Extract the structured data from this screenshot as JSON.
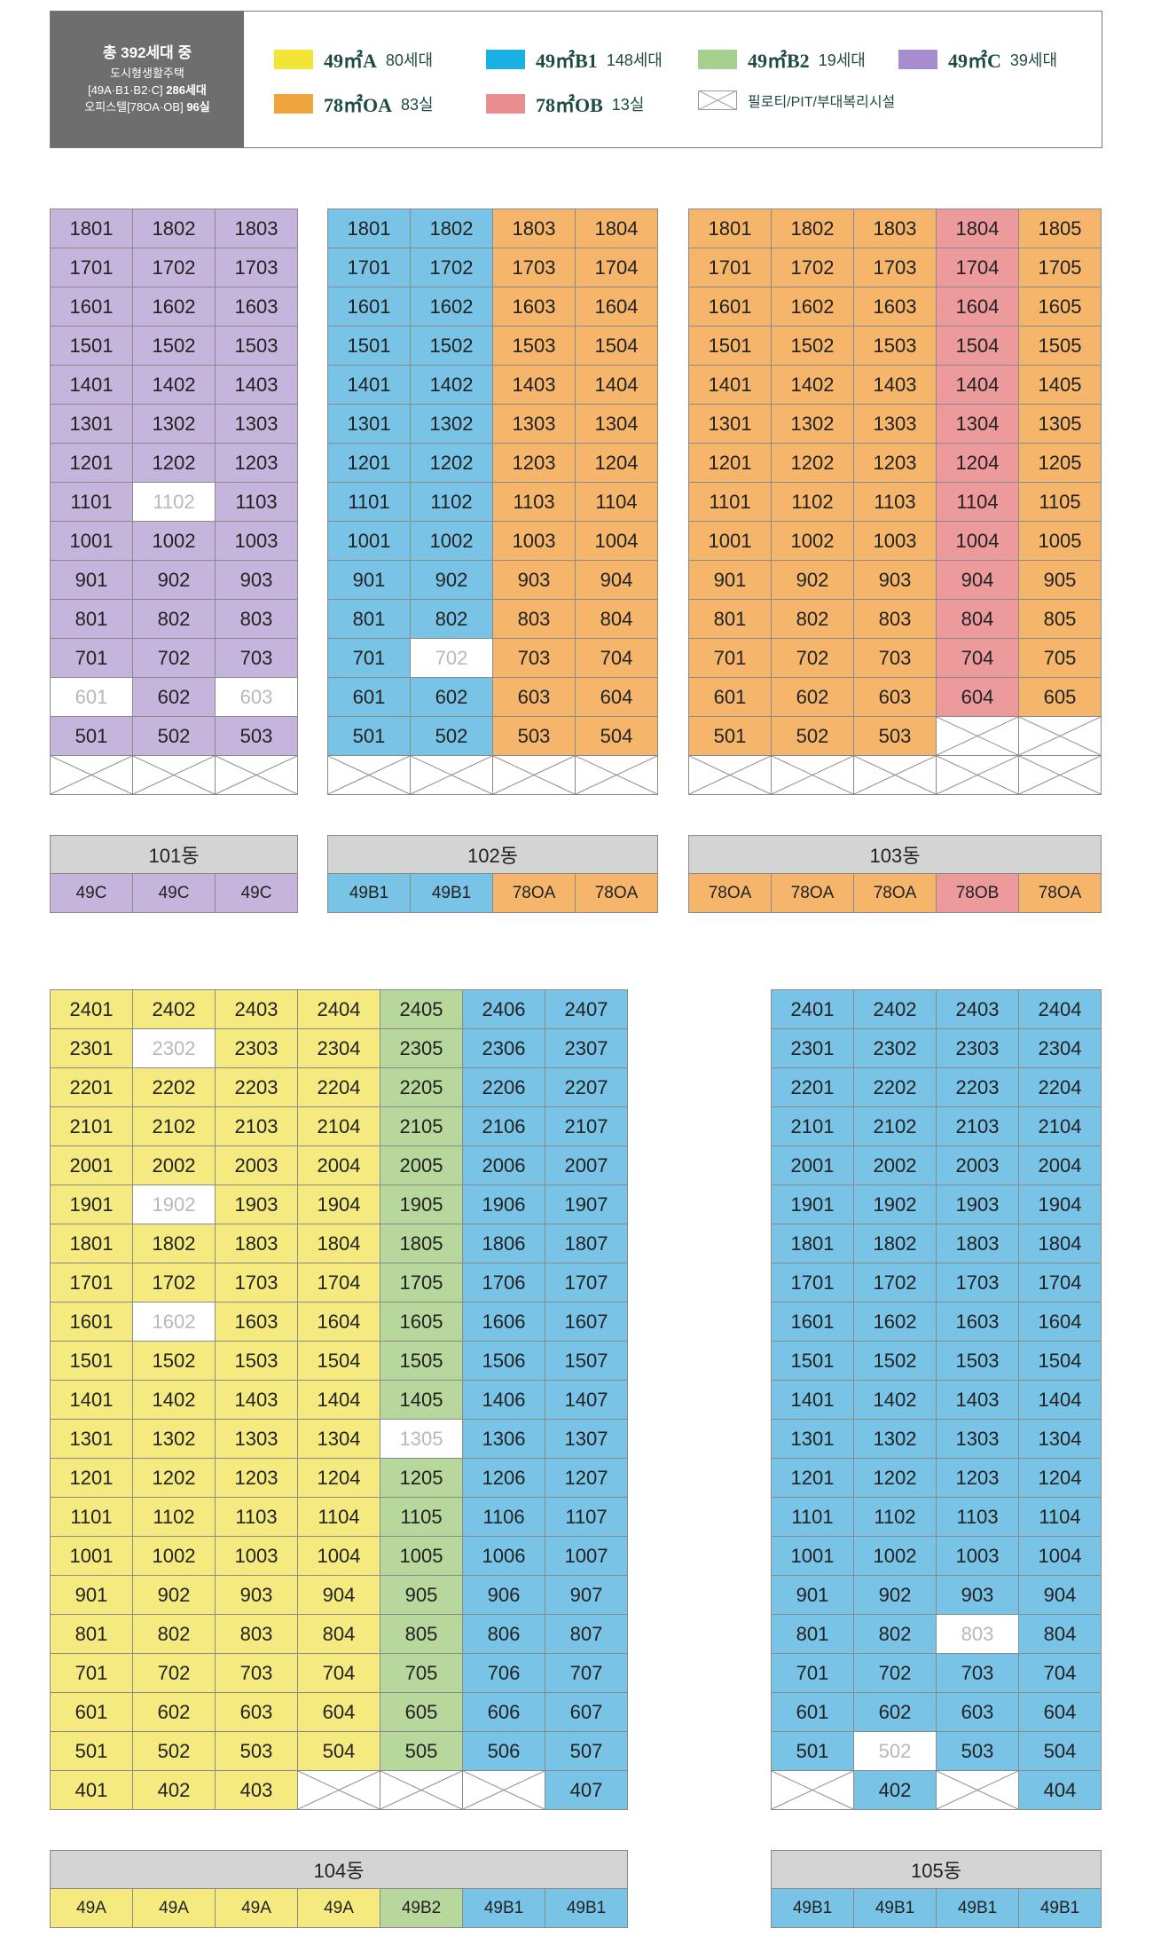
{
  "legend": {
    "summary": {
      "line1": "총 392세대 중",
      "line2": "도시형생활주택",
      "line3_a": "[49A·B1·B2·C]",
      "line3_b": "286세대",
      "line4_a": "오피스텔[78OA·OB]",
      "line4_b": "96실"
    },
    "items": [
      {
        "key": "A",
        "type": "49㎡A",
        "count": "80세대",
        "color": "#f3e438"
      },
      {
        "key": "B1",
        "type": "49㎡B1",
        "count": "148세대",
        "color": "#1ab0e2"
      },
      {
        "key": "B2",
        "type": "49㎡B2",
        "count": "19세대",
        "color": "#a6d08d"
      },
      {
        "key": "C",
        "type": "49㎡C",
        "count": "39세대",
        "color": "#a88cd0"
      },
      {
        "key": "OA",
        "type": "78㎡OA",
        "count": "83실",
        "color": "#f0a43c"
      },
      {
        "key": "OB",
        "type": "78㎡OB",
        "count": "13실",
        "color": "#eb8e92"
      }
    ],
    "piloti_label": "필로티/PIT/부대복리시설"
  },
  "buildings": [
    {
      "name": "101동",
      "col_types": [
        "C",
        "C",
        "C"
      ],
      "type_labels": [
        "49C",
        "49C",
        "49C"
      ],
      "rows": [
        [
          "1801",
          "1802",
          "1803"
        ],
        [
          "1701",
          "1702",
          "1703"
        ],
        [
          "1601",
          "1602",
          "1603"
        ],
        [
          "1501",
          "1502",
          "1503"
        ],
        [
          "1401",
          "1402",
          "1403"
        ],
        [
          "1301",
          "1302",
          "1303"
        ],
        [
          "1201",
          "1202",
          "1203"
        ],
        [
          "1101",
          "1102",
          "1103"
        ],
        [
          "1001",
          "1002",
          "1003"
        ],
        [
          "901",
          "902",
          "903"
        ],
        [
          "801",
          "802",
          "803"
        ],
        [
          "701",
          "702",
          "703"
        ],
        [
          "601",
          "602",
          "603"
        ],
        [
          "501",
          "502",
          "503"
        ],
        [
          "",
          "",
          ""
        ]
      ],
      "blank": [
        "1102",
        "601",
        "603"
      ]
    },
    {
      "name": "102동",
      "col_types": [
        "B1",
        "B1",
        "OA",
        "OA"
      ],
      "type_labels": [
        "49B1",
        "49B1",
        "78OA",
        "78OA"
      ],
      "rows": [
        [
          "1801",
          "1802",
          "1803",
          "1804"
        ],
        [
          "1701",
          "1702",
          "1703",
          "1704"
        ],
        [
          "1601",
          "1602",
          "1603",
          "1604"
        ],
        [
          "1501",
          "1502",
          "1503",
          "1504"
        ],
        [
          "1401",
          "1402",
          "1403",
          "1404"
        ],
        [
          "1301",
          "1302",
          "1303",
          "1304"
        ],
        [
          "1201",
          "1202",
          "1203",
          "1204"
        ],
        [
          "1101",
          "1102",
          "1103",
          "1104"
        ],
        [
          "1001",
          "1002",
          "1003",
          "1004"
        ],
        [
          "901",
          "902",
          "903",
          "904"
        ],
        [
          "801",
          "802",
          "803",
          "804"
        ],
        [
          "701",
          "702",
          "703",
          "704"
        ],
        [
          "601",
          "602",
          "603",
          "604"
        ],
        [
          "501",
          "502",
          "503",
          "504"
        ],
        [
          "",
          "",
          "",
          ""
        ]
      ],
      "blank": [
        "702"
      ]
    },
    {
      "name": "103동",
      "col_types": [
        "OA",
        "OA",
        "OA",
        "OB",
        "OA"
      ],
      "type_labels": [
        "78OA",
        "78OA",
        "78OA",
        "78OB",
        "78OA"
      ],
      "rows": [
        [
          "1801",
          "1802",
          "1803",
          "1804",
          "1805"
        ],
        [
          "1701",
          "1702",
          "1703",
          "1704",
          "1705"
        ],
        [
          "1601",
          "1602",
          "1603",
          "1604",
          "1605"
        ],
        [
          "1501",
          "1502",
          "1503",
          "1504",
          "1505"
        ],
        [
          "1401",
          "1402",
          "1403",
          "1404",
          "1405"
        ],
        [
          "1301",
          "1302",
          "1303",
          "1304",
          "1305"
        ],
        [
          "1201",
          "1202",
          "1203",
          "1204",
          "1205"
        ],
        [
          "1101",
          "1102",
          "1103",
          "1104",
          "1105"
        ],
        [
          "1001",
          "1002",
          "1003",
          "1004",
          "1005"
        ],
        [
          "901",
          "902",
          "903",
          "904",
          "905"
        ],
        [
          "801",
          "802",
          "803",
          "804",
          "805"
        ],
        [
          "701",
          "702",
          "703",
          "704",
          "705"
        ],
        [
          "601",
          "602",
          "603",
          "604",
          "605"
        ],
        [
          "501",
          "502",
          "503",
          "",
          ""
        ],
        [
          "",
          "",
          "",
          "",
          ""
        ]
      ],
      "blank": []
    },
    {
      "name": "104동",
      "col_types": [
        "A",
        "A",
        "A",
        "A",
        "B2",
        "B1",
        "B1"
      ],
      "type_labels": [
        "49A",
        "49A",
        "49A",
        "49A",
        "49B2",
        "49B1",
        "49B1"
      ],
      "rows": [
        [
          "2401",
          "2402",
          "2403",
          "2404",
          "2405",
          "2406",
          "2407"
        ],
        [
          "2301",
          "2302",
          "2303",
          "2304",
          "2305",
          "2306",
          "2307"
        ],
        [
          "2201",
          "2202",
          "2203",
          "2204",
          "2205",
          "2206",
          "2207"
        ],
        [
          "2101",
          "2102",
          "2103",
          "2104",
          "2105",
          "2106",
          "2107"
        ],
        [
          "2001",
          "2002",
          "2003",
          "2004",
          "2005",
          "2006",
          "2007"
        ],
        [
          "1901",
          "1902",
          "1903",
          "1904",
          "1905",
          "1906",
          "1907"
        ],
        [
          "1801",
          "1802",
          "1803",
          "1804",
          "1805",
          "1806",
          "1807"
        ],
        [
          "1701",
          "1702",
          "1703",
          "1704",
          "1705",
          "1706",
          "1707"
        ],
        [
          "1601",
          "1602",
          "1603",
          "1604",
          "1605",
          "1606",
          "1607"
        ],
        [
          "1501",
          "1502",
          "1503",
          "1504",
          "1505",
          "1506",
          "1507"
        ],
        [
          "1401",
          "1402",
          "1403",
          "1404",
          "1405",
          "1406",
          "1407"
        ],
        [
          "1301",
          "1302",
          "1303",
          "1304",
          "1305",
          "1306",
          "1307"
        ],
        [
          "1201",
          "1202",
          "1203",
          "1204",
          "1205",
          "1206",
          "1207"
        ],
        [
          "1101",
          "1102",
          "1103",
          "1104",
          "1105",
          "1106",
          "1107"
        ],
        [
          "1001",
          "1002",
          "1003",
          "1004",
          "1005",
          "1006",
          "1007"
        ],
        [
          "901",
          "902",
          "903",
          "904",
          "905",
          "906",
          "907"
        ],
        [
          "801",
          "802",
          "803",
          "804",
          "805",
          "806",
          "807"
        ],
        [
          "701",
          "702",
          "703",
          "704",
          "705",
          "706",
          "707"
        ],
        [
          "601",
          "602",
          "603",
          "604",
          "605",
          "606",
          "607"
        ],
        [
          "501",
          "502",
          "503",
          "504",
          "505",
          "506",
          "507"
        ],
        [
          "401",
          "402",
          "403",
          "",
          "",
          "",
          "407"
        ]
      ],
      "blank": [
        "2302",
        "1902",
        "1602",
        "1305"
      ]
    },
    {
      "name": "105동",
      "col_types": [
        "B1",
        "B1",
        "B1",
        "B1"
      ],
      "type_labels": [
        "49B1",
        "49B1",
        "49B1",
        "49B1"
      ],
      "rows": [
        [
          "2401",
          "2402",
          "2403",
          "2404"
        ],
        [
          "2301",
          "2302",
          "2303",
          "2304"
        ],
        [
          "2201",
          "2202",
          "2203",
          "2204"
        ],
        [
          "2101",
          "2102",
          "2103",
          "2104"
        ],
        [
          "2001",
          "2002",
          "2003",
          "2004"
        ],
        [
          "1901",
          "1902",
          "1903",
          "1904"
        ],
        [
          "1801",
          "1802",
          "1803",
          "1804"
        ],
        [
          "1701",
          "1702",
          "1703",
          "1704"
        ],
        [
          "1601",
          "1602",
          "1603",
          "1604"
        ],
        [
          "1501",
          "1502",
          "1503",
          "1504"
        ],
        [
          "1401",
          "1402",
          "1403",
          "1404"
        ],
        [
          "1301",
          "1302",
          "1303",
          "1304"
        ],
        [
          "1201",
          "1202",
          "1203",
          "1204"
        ],
        [
          "1101",
          "1102",
          "1103",
          "1104"
        ],
        [
          "1001",
          "1002",
          "1003",
          "1004"
        ],
        [
          "901",
          "902",
          "903",
          "904"
        ],
        [
          "801",
          "802",
          "803",
          "804"
        ],
        [
          "701",
          "702",
          "703",
          "704"
        ],
        [
          "601",
          "602",
          "603",
          "604"
        ],
        [
          "501",
          "502",
          "503",
          "504"
        ],
        [
          "",
          "402",
          "",
          "404"
        ]
      ],
      "blank": [
        "803",
        "502"
      ]
    }
  ]
}
